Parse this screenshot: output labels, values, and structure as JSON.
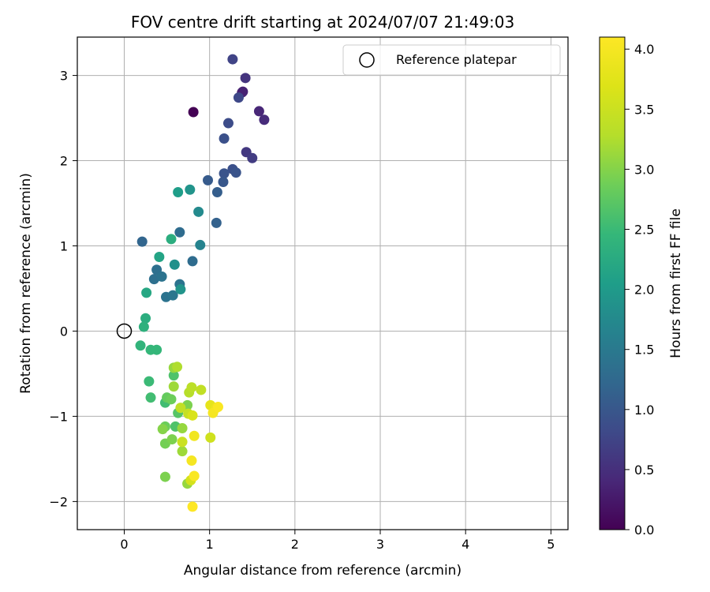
{
  "chart_data": {
    "type": "scatter",
    "title": "FOV centre drift starting at 2024/07/07 21:49:03",
    "xlabel": "Angular distance from reference (arcmin)",
    "ylabel": "Rotation from reference (arcmin)",
    "xlim": [
      -0.55,
      5.2
    ],
    "ylim": [
      -2.33,
      3.45
    ],
    "x_ticks": [
      0,
      1,
      2,
      3,
      4,
      5
    ],
    "y_ticks": [
      -2,
      -1,
      0,
      1,
      2,
      3
    ],
    "grid": true,
    "legend": {
      "placement": "top-right",
      "entries": [
        "Reference platepar"
      ]
    },
    "reference_point": {
      "x": 0,
      "y": 0
    },
    "colorbar": {
      "label": "Hours from first FF file",
      "range": [
        0.0,
        4.1
      ],
      "ticks": [
        "0.0",
        "0.5",
        "1.0",
        "1.5",
        "2.0",
        "2.5",
        "3.0",
        "3.5",
        "4.0"
      ],
      "colormap": "viridis"
    },
    "points": [
      {
        "x": 0.81,
        "y": 2.57,
        "c": 0.0
      },
      {
        "x": 1.38,
        "y": 2.8,
        "c": 0.3
      },
      {
        "x": 1.39,
        "y": 2.81,
        "c": 0.35
      },
      {
        "x": 1.58,
        "y": 2.58,
        "c": 0.4
      },
      {
        "x": 1.64,
        "y": 2.48,
        "c": 0.45
      },
      {
        "x": 1.42,
        "y": 2.97,
        "c": 0.55
      },
      {
        "x": 1.43,
        "y": 2.1,
        "c": 0.6
      },
      {
        "x": 1.5,
        "y": 2.03,
        "c": 0.65
      },
      {
        "x": 1.27,
        "y": 3.19,
        "c": 0.75
      },
      {
        "x": 1.34,
        "y": 2.74,
        "c": 0.8
      },
      {
        "x": 1.22,
        "y": 2.44,
        "c": 0.85
      },
      {
        "x": 1.17,
        "y": 2.26,
        "c": 0.9
      },
      {
        "x": 1.27,
        "y": 1.9,
        "c": 0.9
      },
      {
        "x": 1.31,
        "y": 1.86,
        "c": 0.95
      },
      {
        "x": 1.17,
        "y": 1.85,
        "c": 0.95
      },
      {
        "x": 1.16,
        "y": 1.75,
        "c": 1.0
      },
      {
        "x": 0.98,
        "y": 1.77,
        "c": 1.05
      },
      {
        "x": 1.09,
        "y": 1.63,
        "c": 1.1
      },
      {
        "x": 1.08,
        "y": 1.27,
        "c": 1.15
      },
      {
        "x": 0.21,
        "y": 1.05,
        "c": 1.2
      },
      {
        "x": 0.65,
        "y": 1.16,
        "c": 1.3
      },
      {
        "x": 0.8,
        "y": 0.82,
        "c": 1.3
      },
      {
        "x": 0.38,
        "y": 0.72,
        "c": 1.35
      },
      {
        "x": 0.35,
        "y": 0.61,
        "c": 1.35
      },
      {
        "x": 0.44,
        "y": 0.64,
        "c": 1.4
      },
      {
        "x": 0.65,
        "y": 0.55,
        "c": 1.4
      },
      {
        "x": 0.49,
        "y": 0.4,
        "c": 1.4
      },
      {
        "x": 0.57,
        "y": 0.42,
        "c": 1.45
      },
      {
        "x": 0.89,
        "y": 1.01,
        "c": 1.65
      },
      {
        "x": 0.87,
        "y": 1.4,
        "c": 1.75
      },
      {
        "x": 0.77,
        "y": 1.66,
        "c": 1.9
      },
      {
        "x": 0.63,
        "y": 1.63,
        "c": 2.05
      },
      {
        "x": 0.59,
        "y": 0.78,
        "c": 1.85
      },
      {
        "x": 0.66,
        "y": 0.49,
        "c": 1.9
      },
      {
        "x": 0.41,
        "y": 0.87,
        "c": 2.15
      },
      {
        "x": 0.55,
        "y": 1.08,
        "c": 2.3
      },
      {
        "x": 0.26,
        "y": 0.45,
        "c": 2.2
      },
      {
        "x": 0.25,
        "y": 0.15,
        "c": 2.3
      },
      {
        "x": 0.23,
        "y": 0.05,
        "c": 2.35
      },
      {
        "x": 0.19,
        "y": -0.17,
        "c": 2.4
      },
      {
        "x": 0.38,
        "y": -0.22,
        "c": 2.45
      },
      {
        "x": 0.31,
        "y": -0.22,
        "c": 2.45
      },
      {
        "x": 0.29,
        "y": -0.59,
        "c": 2.5
      },
      {
        "x": 0.31,
        "y": -0.78,
        "c": 2.55
      },
      {
        "x": 0.48,
        "y": -0.84,
        "c": 2.55
      },
      {
        "x": 0.58,
        "y": -0.52,
        "c": 2.65
      },
      {
        "x": 0.63,
        "y": -0.96,
        "c": 2.7
      },
      {
        "x": 0.6,
        "y": -1.12,
        "c": 2.65
      },
      {
        "x": 0.5,
        "y": -0.78,
        "c": 2.8
      },
      {
        "x": 0.55,
        "y": -0.8,
        "c": 2.85
      },
      {
        "x": 0.48,
        "y": -1.12,
        "c": 2.85
      },
      {
        "x": 0.48,
        "y": -1.32,
        "c": 2.9
      },
      {
        "x": 0.56,
        "y": -1.27,
        "c": 2.95
      },
      {
        "x": 0.74,
        "y": -0.87,
        "c": 2.95
      },
      {
        "x": 0.45,
        "y": -1.15,
        "c": 3.0
      },
      {
        "x": 0.48,
        "y": -1.71,
        "c": 2.95
      },
      {
        "x": 0.74,
        "y": -1.79,
        "c": 3.1
      },
      {
        "x": 0.58,
        "y": -0.43,
        "c": 3.1
      },
      {
        "x": 0.58,
        "y": -0.65,
        "c": 3.15
      },
      {
        "x": 0.62,
        "y": -0.42,
        "c": 3.25
      },
      {
        "x": 0.68,
        "y": -1.14,
        "c": 3.1
      },
      {
        "x": 0.68,
        "y": -1.41,
        "c": 3.15
      },
      {
        "x": 0.76,
        "y": -0.72,
        "c": 3.3
      },
      {
        "x": 0.79,
        "y": -0.66,
        "c": 3.35
      },
      {
        "x": 0.66,
        "y": -0.9,
        "c": 3.4
      },
      {
        "x": 0.75,
        "y": -0.97,
        "c": 3.45
      },
      {
        "x": 0.68,
        "y": -1.3,
        "c": 3.5
      },
      {
        "x": 0.78,
        "y": -1.75,
        "c": 3.6
      },
      {
        "x": 0.9,
        "y": -0.69,
        "c": 3.4
      },
      {
        "x": 0.8,
        "y": -0.99,
        "c": 3.65
      },
      {
        "x": 1.01,
        "y": -1.25,
        "c": 3.55
      },
      {
        "x": 1.01,
        "y": -0.87,
        "c": 3.8
      },
      {
        "x": 1.08,
        "y": -0.9,
        "c": 3.9
      },
      {
        "x": 1.04,
        "y": -0.96,
        "c": 4.0
      },
      {
        "x": 1.1,
        "y": -0.89,
        "c": 4.05
      },
      {
        "x": 0.82,
        "y": -1.23,
        "c": 3.95
      },
      {
        "x": 0.79,
        "y": -1.52,
        "c": 4.0
      },
      {
        "x": 0.82,
        "y": -1.7,
        "c": 4.05
      },
      {
        "x": 0.8,
        "y": -2.06,
        "c": 4.1
      }
    ]
  }
}
